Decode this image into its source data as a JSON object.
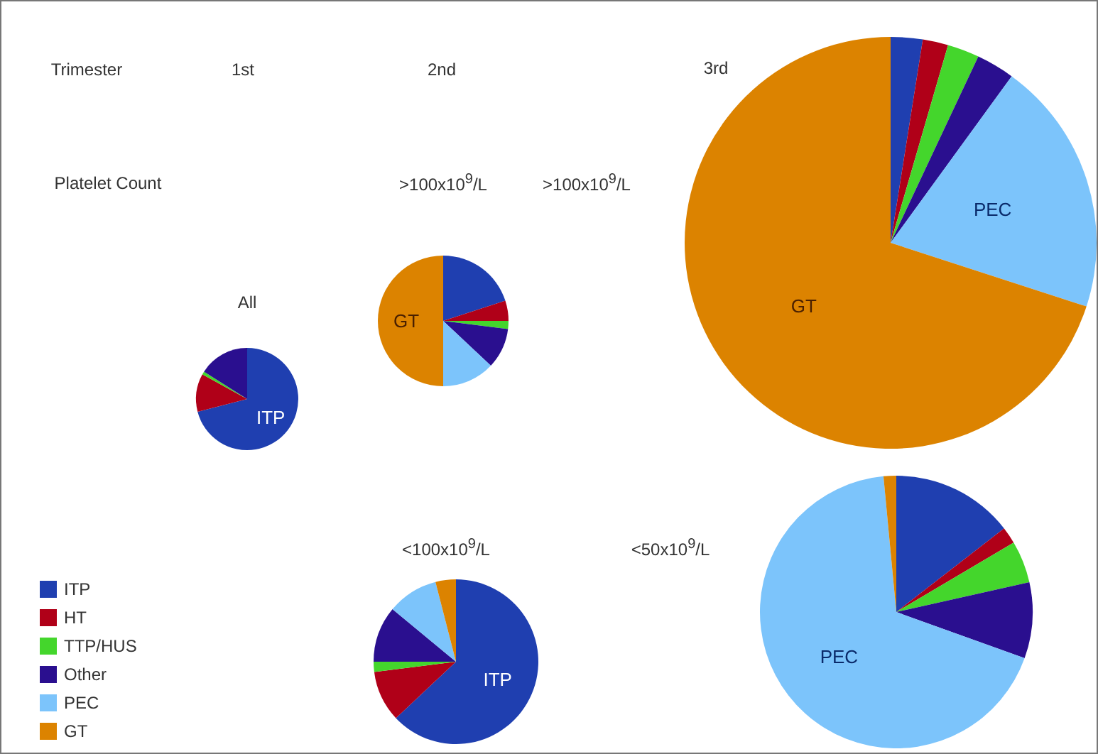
{
  "chart_data": [
    {
      "type": "pie",
      "title": "All",
      "subtitle": "1st",
      "categories": [
        "ITP",
        "HT",
        "TTP/HUS",
        "Other",
        "PEC",
        "GT"
      ],
      "values": [
        71,
        12,
        1,
        16,
        0,
        0
      ],
      "colors": [
        "#1f3fb0",
        "#b00018",
        "#44d62c",
        "#2a0f8f",
        "#7cc4fb",
        "#dc8300"
      ],
      "legend": "bottom left",
      "annotations": [
        "Trimester",
        "Platelet Count",
        {
          "text": "ITP",
          "x": "ITP"
        }
      ]
    },
    {
      "type": "pie",
      "title": ">100x10$^{9}$/L",
      "subtitle": "2nd",
      "categories": [
        null,
        null,
        null,
        null,
        null,
        "GT"
      ],
      "values": [
        20,
        5,
        2,
        10,
        13,
        50
      ],
      "colors": [
        "#1f3fb0",
        "#b00018",
        "#44d62c",
        "#2a0f8f",
        "#7cc4fb",
        "#dc8300"
      ]
    },
    {
      "type": "pie",
      "title": ">100x10$^{9}$/L",
      "subtitle": "3rd",
      "categories": [
        null,
        null,
        null,
        null,
        "PEC",
        "GT"
      ],
      "values": [
        2.5,
        2,
        2.5,
        3,
        20,
        70
      ],
      "colors": [
        "#1f3fb0",
        "#b00018",
        "#44d62c",
        "#2a0f8f",
        "#7cc4fb",
        "#dc8300"
      ]
    },
    {
      "type": "pie",
      "title": "<100x10$^{9}$/L",
      "categories": [
        "ITP",
        null,
        null,
        null,
        null,
        null
      ],
      "values": [
        63,
        10,
        2,
        11,
        10,
        4
      ],
      "colors": [
        "#1f3fb0",
        "#b00018",
        "#44d62c",
        "#2a0f8f",
        "#7cc4fb",
        "#dc8300"
      ]
    },
    {
      "type": "pie",
      "title": "<50x10$^{9}$/L",
      "categories": [
        null,
        null,
        null,
        null,
        "PEC",
        null
      ],
      "values": [
        14.5,
        2,
        5,
        9,
        68,
        1.5
      ],
      "colors": [
        "#1f3fb0",
        "#b00018",
        "#44d62c",
        "#2a0f8f",
        "#7cc4fb",
        "#dc8300"
      ]
    }
  ]
}
